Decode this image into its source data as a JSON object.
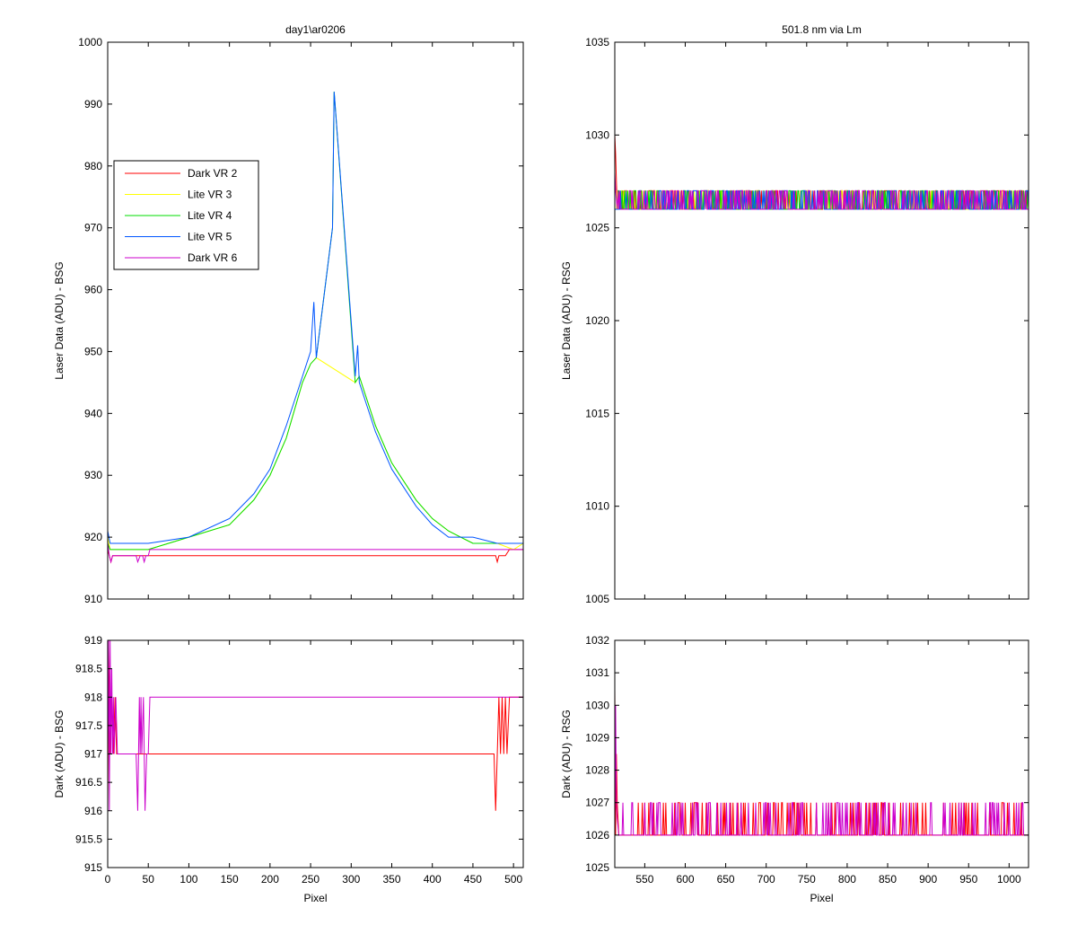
{
  "chart_data": [
    {
      "id": "bsg_laser",
      "type": "line",
      "title": "day1\\ar0206",
      "xlabel": "",
      "ylabel": "Laser Data (ADU) - BSG",
      "xlim": [
        0,
        512
      ],
      "ylim": [
        910,
        1000
      ],
      "xticks": [
        0,
        50,
        100,
        150,
        200,
        250,
        300,
        350,
        400,
        450,
        500
      ],
      "yticks": [
        910,
        920,
        930,
        940,
        950,
        960,
        970,
        980,
        990,
        1000
      ],
      "show_xticklabels": false,
      "legend": {
        "placement": "upper-left",
        "entries": [
          "Dark VR 2",
          "Lite VR 3",
          "Lite VR 4",
          "Lite VR 5",
          "Dark VR 6"
        ]
      },
      "series": [
        {
          "name": "Dark VR 2",
          "color": "#ff0000",
          "x": [
            0,
            2,
            4,
            6,
            470,
            478,
            480,
            482,
            490,
            495,
            512
          ],
          "y": [
            918,
            917,
            916,
            917,
            917,
            917,
            916,
            917,
            917,
            918,
            918
          ]
        },
        {
          "name": "Lite VR 3",
          "color": "#ffff00",
          "x": [
            0,
            3,
            5,
            50,
            100,
            150,
            180,
            200,
            220,
            240,
            250,
            257,
            305,
            310,
            330,
            350,
            380,
            400,
            420,
            450,
            480,
            500,
            512
          ],
          "y": [
            920,
            918,
            918,
            918,
            920,
            922,
            926,
            930,
            936,
            945,
            948,
            949,
            945,
            946,
            938,
            932,
            926,
            923,
            921,
            919,
            919,
            918,
            919
          ]
        },
        {
          "name": "Lite VR 4",
          "color": "#00dd00",
          "x": [
            0,
            3,
            5,
            50,
            100,
            150,
            180,
            200,
            220,
            240,
            250,
            257,
            277,
            278,
            279,
            305,
            310,
            330,
            350,
            380,
            400,
            420,
            450,
            480,
            500,
            512
          ],
          "y": [
            919,
            918,
            918,
            918,
            920,
            922,
            926,
            930,
            936,
            945,
            948,
            949,
            970,
            981,
            992,
            945,
            946,
            938,
            932,
            926,
            923,
            921,
            919,
            919,
            919,
            919
          ]
        },
        {
          "name": "Lite VR 5",
          "color": "#0055ff",
          "x": [
            0,
            3,
            5,
            50,
            100,
            150,
            180,
            200,
            220,
            240,
            250,
            254,
            257,
            277,
            278,
            279,
            305,
            308,
            310,
            330,
            350,
            380,
            400,
            420,
            450,
            480,
            500,
            512
          ],
          "y": [
            921,
            919,
            919,
            919,
            920,
            923,
            927,
            931,
            938,
            946,
            950,
            958,
            949,
            970,
            981,
            992,
            946,
            951,
            945,
            937,
            931,
            925,
            922,
            920,
            920,
            919,
            919,
            919
          ]
        },
        {
          "name": "Dark VR 6",
          "color": "#cc00cc",
          "x": [
            0,
            2,
            4,
            6,
            35,
            37,
            40,
            43,
            45,
            47,
            50,
            52,
            512
          ],
          "y": [
            919,
            917,
            916,
            917,
            917,
            916,
            917,
            917,
            916,
            917,
            917,
            918,
            918
          ]
        }
      ]
    },
    {
      "id": "rsg_laser",
      "type": "line",
      "title": "501.8 nm via Lm",
      "xlabel": "",
      "ylabel": "Laser Data (ADU) - RSG",
      "xlim": [
        513,
        1024
      ],
      "ylim": [
        1005,
        1035
      ],
      "xticks": [
        550,
        600,
        650,
        700,
        750,
        800,
        850,
        900,
        950,
        1000
      ],
      "yticks": [
        1005,
        1010,
        1015,
        1020,
        1025,
        1030,
        1035
      ],
      "show_xticklabels": false,
      "series": [
        {
          "name": "Dark VR 2",
          "color": "#ff0000",
          "x": [
            513,
            514,
            516,
            1024
          ],
          "y": [
            1030,
            1029,
            1026,
            1026
          ]
        },
        {
          "name": "Lite VR 3",
          "color": "#ffff00",
          "x": [
            513,
            1024
          ],
          "y": [
            1026,
            1026
          ]
        },
        {
          "name": "Lite VR 4",
          "color": "#00dd00",
          "x": [
            513,
            1024
          ],
          "y": [
            1026,
            1026
          ]
        },
        {
          "name": "Lite VR 5",
          "color": "#0055ff",
          "x": [
            513,
            1024
          ],
          "y": [
            1026,
            1026
          ]
        },
        {
          "name": "Dark VR 6",
          "color": "#cc00cc",
          "x": [
            513,
            514,
            516,
            1024
          ],
          "y": [
            1028,
            1027,
            1026,
            1026
          ]
        }
      ]
    },
    {
      "id": "bsg_dark",
      "type": "line",
      "title": "",
      "xlabel": "Pixel",
      "ylabel": "Dark (ADU) - BSG",
      "xlim": [
        0,
        512
      ],
      "ylim": [
        915,
        919
      ],
      "xticks": [
        0,
        50,
        100,
        150,
        200,
        250,
        300,
        350,
        400,
        450,
        500
      ],
      "yticks": [
        915,
        915.5,
        916,
        916.5,
        917,
        917.5,
        918,
        918.5,
        919
      ],
      "show_xticklabels": true,
      "series": [
        {
          "name": "Dark VR 2",
          "color": "#ff0000",
          "x": [
            0,
            1,
            2,
            3,
            5,
            7,
            9,
            11,
            470,
            476,
            478,
            480,
            482,
            484,
            486,
            488,
            490,
            492,
            495,
            512
          ],
          "y": [
            916,
            919,
            918,
            917,
            918,
            917,
            918,
            917,
            917,
            917,
            916,
            917,
            918,
            917,
            918,
            917,
            918,
            917,
            918,
            918
          ]
        },
        {
          "name": "Dark VR 6",
          "color": "#cc00cc",
          "x": [
            0,
            1,
            2,
            3,
            4,
            5,
            6,
            7,
            8,
            10,
            12,
            35,
            37,
            38,
            39,
            40,
            41,
            42,
            44,
            46,
            48,
            50,
            52,
            512
          ],
          "y": [
            917,
            919,
            916,
            919,
            917,
            918.5,
            917,
            918,
            917,
            918,
            917,
            917,
            916,
            917,
            918,
            917,
            918,
            917,
            918,
            916,
            917,
            917,
            918,
            918
          ]
        }
      ]
    },
    {
      "id": "rsg_dark",
      "type": "line",
      "title": "",
      "xlabel": "Pixel",
      "ylabel": "Dark (ADU) - RSG",
      "xlim": [
        513,
        1024
      ],
      "ylim": [
        1025,
        1032
      ],
      "xticks": [
        550,
        600,
        650,
        700,
        750,
        800,
        850,
        900,
        950,
        1000
      ],
      "yticks": [
        1025,
        1026,
        1027,
        1028,
        1029,
        1030,
        1031,
        1032
      ],
      "show_xticklabels": true,
      "series": [
        {
          "name": "Dark VR 2",
          "color": "#ff0000",
          "x": [
            513,
            514,
            515,
            516,
            518,
            1024
          ],
          "y": [
            1030.5,
            1026,
            1028.5,
            1027,
            1026,
            1026
          ]
        },
        {
          "name": "Dark VR 6",
          "color": "#cc00cc",
          "x": [
            513,
            514,
            515,
            516,
            518,
            1024
          ],
          "y": [
            1026,
            1030,
            1027,
            1026.5,
            1026,
            1026
          ]
        }
      ]
    }
  ]
}
